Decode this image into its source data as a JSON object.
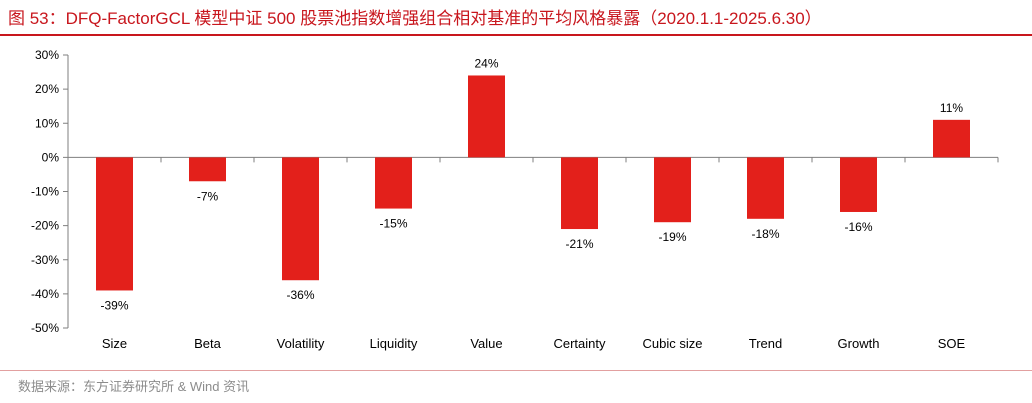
{
  "title": "图 53：DFQ-FactorGCL 模型中证 500 股票池指数增强组合相对基准的平均风格暴露（2020.1.1-2025.6.30）",
  "source": "数据来源：东方证券研究所 & Wind 资讯",
  "colors": {
    "bar": "#e3201b",
    "title": "#c8161d",
    "axis": "#7f7f7f"
  },
  "chart_data": {
    "type": "bar",
    "title": "",
    "xlabel": "",
    "ylabel": "",
    "ylim": [
      -50,
      30
    ],
    "yticks": [
      30,
      20,
      10,
      0,
      -10,
      -20,
      -30,
      -40,
      -50
    ],
    "ytick_labels": [
      "30%",
      "20%",
      "10%",
      "0%",
      "-10%",
      "-20%",
      "-30%",
      "-40%",
      "-50%"
    ],
    "categories": [
      "Size",
      "Beta",
      "Volatility",
      "Liquidity",
      "Value",
      "Certainty",
      "Cubic size",
      "Trend",
      "Growth",
      "SOE"
    ],
    "values": [
      -39,
      -7,
      -36,
      -15,
      24,
      -21,
      -19,
      -18,
      -16,
      11
    ],
    "value_labels": [
      "-39%",
      "-7%",
      "-36%",
      "-15%",
      "24%",
      "-21%",
      "-19%",
      "-18%",
      "-16%",
      "11%"
    ],
    "grid": false,
    "legend": "none"
  }
}
